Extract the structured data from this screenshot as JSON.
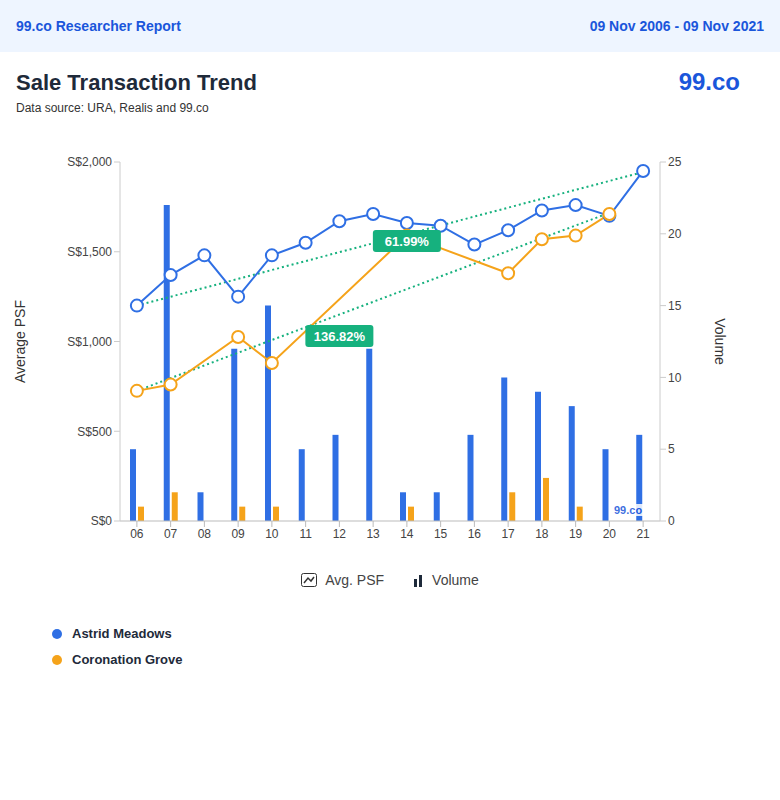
{
  "header": {
    "report": "99.co Researcher Report",
    "period": "09 Nov 2006 - 09 Nov 2021"
  },
  "chart_data": {
    "type": "combo",
    "title": "Sale Transaction Trend",
    "subtitle": "Data source: URA, Realis and 99.co",
    "logo": "99.co",
    "watermark": "99.co",
    "y_label": "Average PSF",
    "y2_label": "Volume",
    "legend_items": [
      {
        "label": "Avg. PSF",
        "type": "line"
      },
      {
        "label": "Volume",
        "type": "bar"
      }
    ],
    "grid": false,
    "categories": [
      "06",
      "07",
      "08",
      "09",
      "10",
      "11",
      "12",
      "13",
      "14",
      "15",
      "16",
      "17",
      "18",
      "19",
      "20",
      "21"
    ],
    "ylim": [
      0,
      2000
    ],
    "yticks": [
      {
        "value": 0,
        "label": "S$0"
      },
      {
        "value": 500,
        "label": "S$500"
      },
      {
        "value": 1000,
        "label": "S$1,000"
      },
      {
        "value": 1500,
        "label": "S$1,500"
      },
      {
        "value": 2000,
        "label": "S$2,000"
      }
    ],
    "y2lim": [
      0,
      25
    ],
    "y2ticks": [
      0,
      5,
      10,
      15,
      20,
      25
    ],
    "series": [
      {
        "name": "Astrid Meadows",
        "type": "bar",
        "axis": "y2",
        "color": "#2f6fe4",
        "values": [
          5,
          22,
          2,
          12,
          15,
          5,
          6,
          12,
          2,
          2,
          6,
          10,
          9,
          8,
          5,
          6
        ]
      },
      {
        "name": "Coronation Grove",
        "type": "bar",
        "axis": "y2",
        "color": "#f5a31a",
        "values": [
          1,
          2,
          0,
          1,
          1,
          0,
          0,
          0,
          1,
          0,
          0,
          2,
          3,
          1,
          0,
          0
        ]
      },
      {
        "name": "Astrid Meadows",
        "type": "line",
        "color": "#2f6fe4",
        "marker": "open_circle",
        "values": [
          1200,
          1370,
          1480,
          1250,
          1480,
          1550,
          1670,
          1710,
          1660,
          1645,
          1540,
          1620,
          1730,
          1760,
          1700,
          1950
        ]
      },
      {
        "name": "Coronation Grove",
        "type": "line",
        "color": "#f5a31a",
        "marker": "open_circle",
        "values": [
          725,
          760,
          null,
          1025,
          880,
          null,
          null,
          null,
          1590,
          null,
          null,
          1380,
          1570,
          1590,
          1710,
          null
        ]
      }
    ],
    "annotations": [
      {
        "text": "61.99%",
        "x1": "06",
        "y1": 1200,
        "x2": "21",
        "y2": 1944,
        "label_x": "14",
        "label_y": 1560,
        "color": "#16b17e",
        "line_style": "dotted"
      },
      {
        "text": "136.82%",
        "x1": "06",
        "y1": 725,
        "x2": "20",
        "y2": 1717,
        "label_x": "12",
        "label_y": 1030,
        "color": "#16b17e",
        "line_style": "dotted"
      }
    ]
  }
}
